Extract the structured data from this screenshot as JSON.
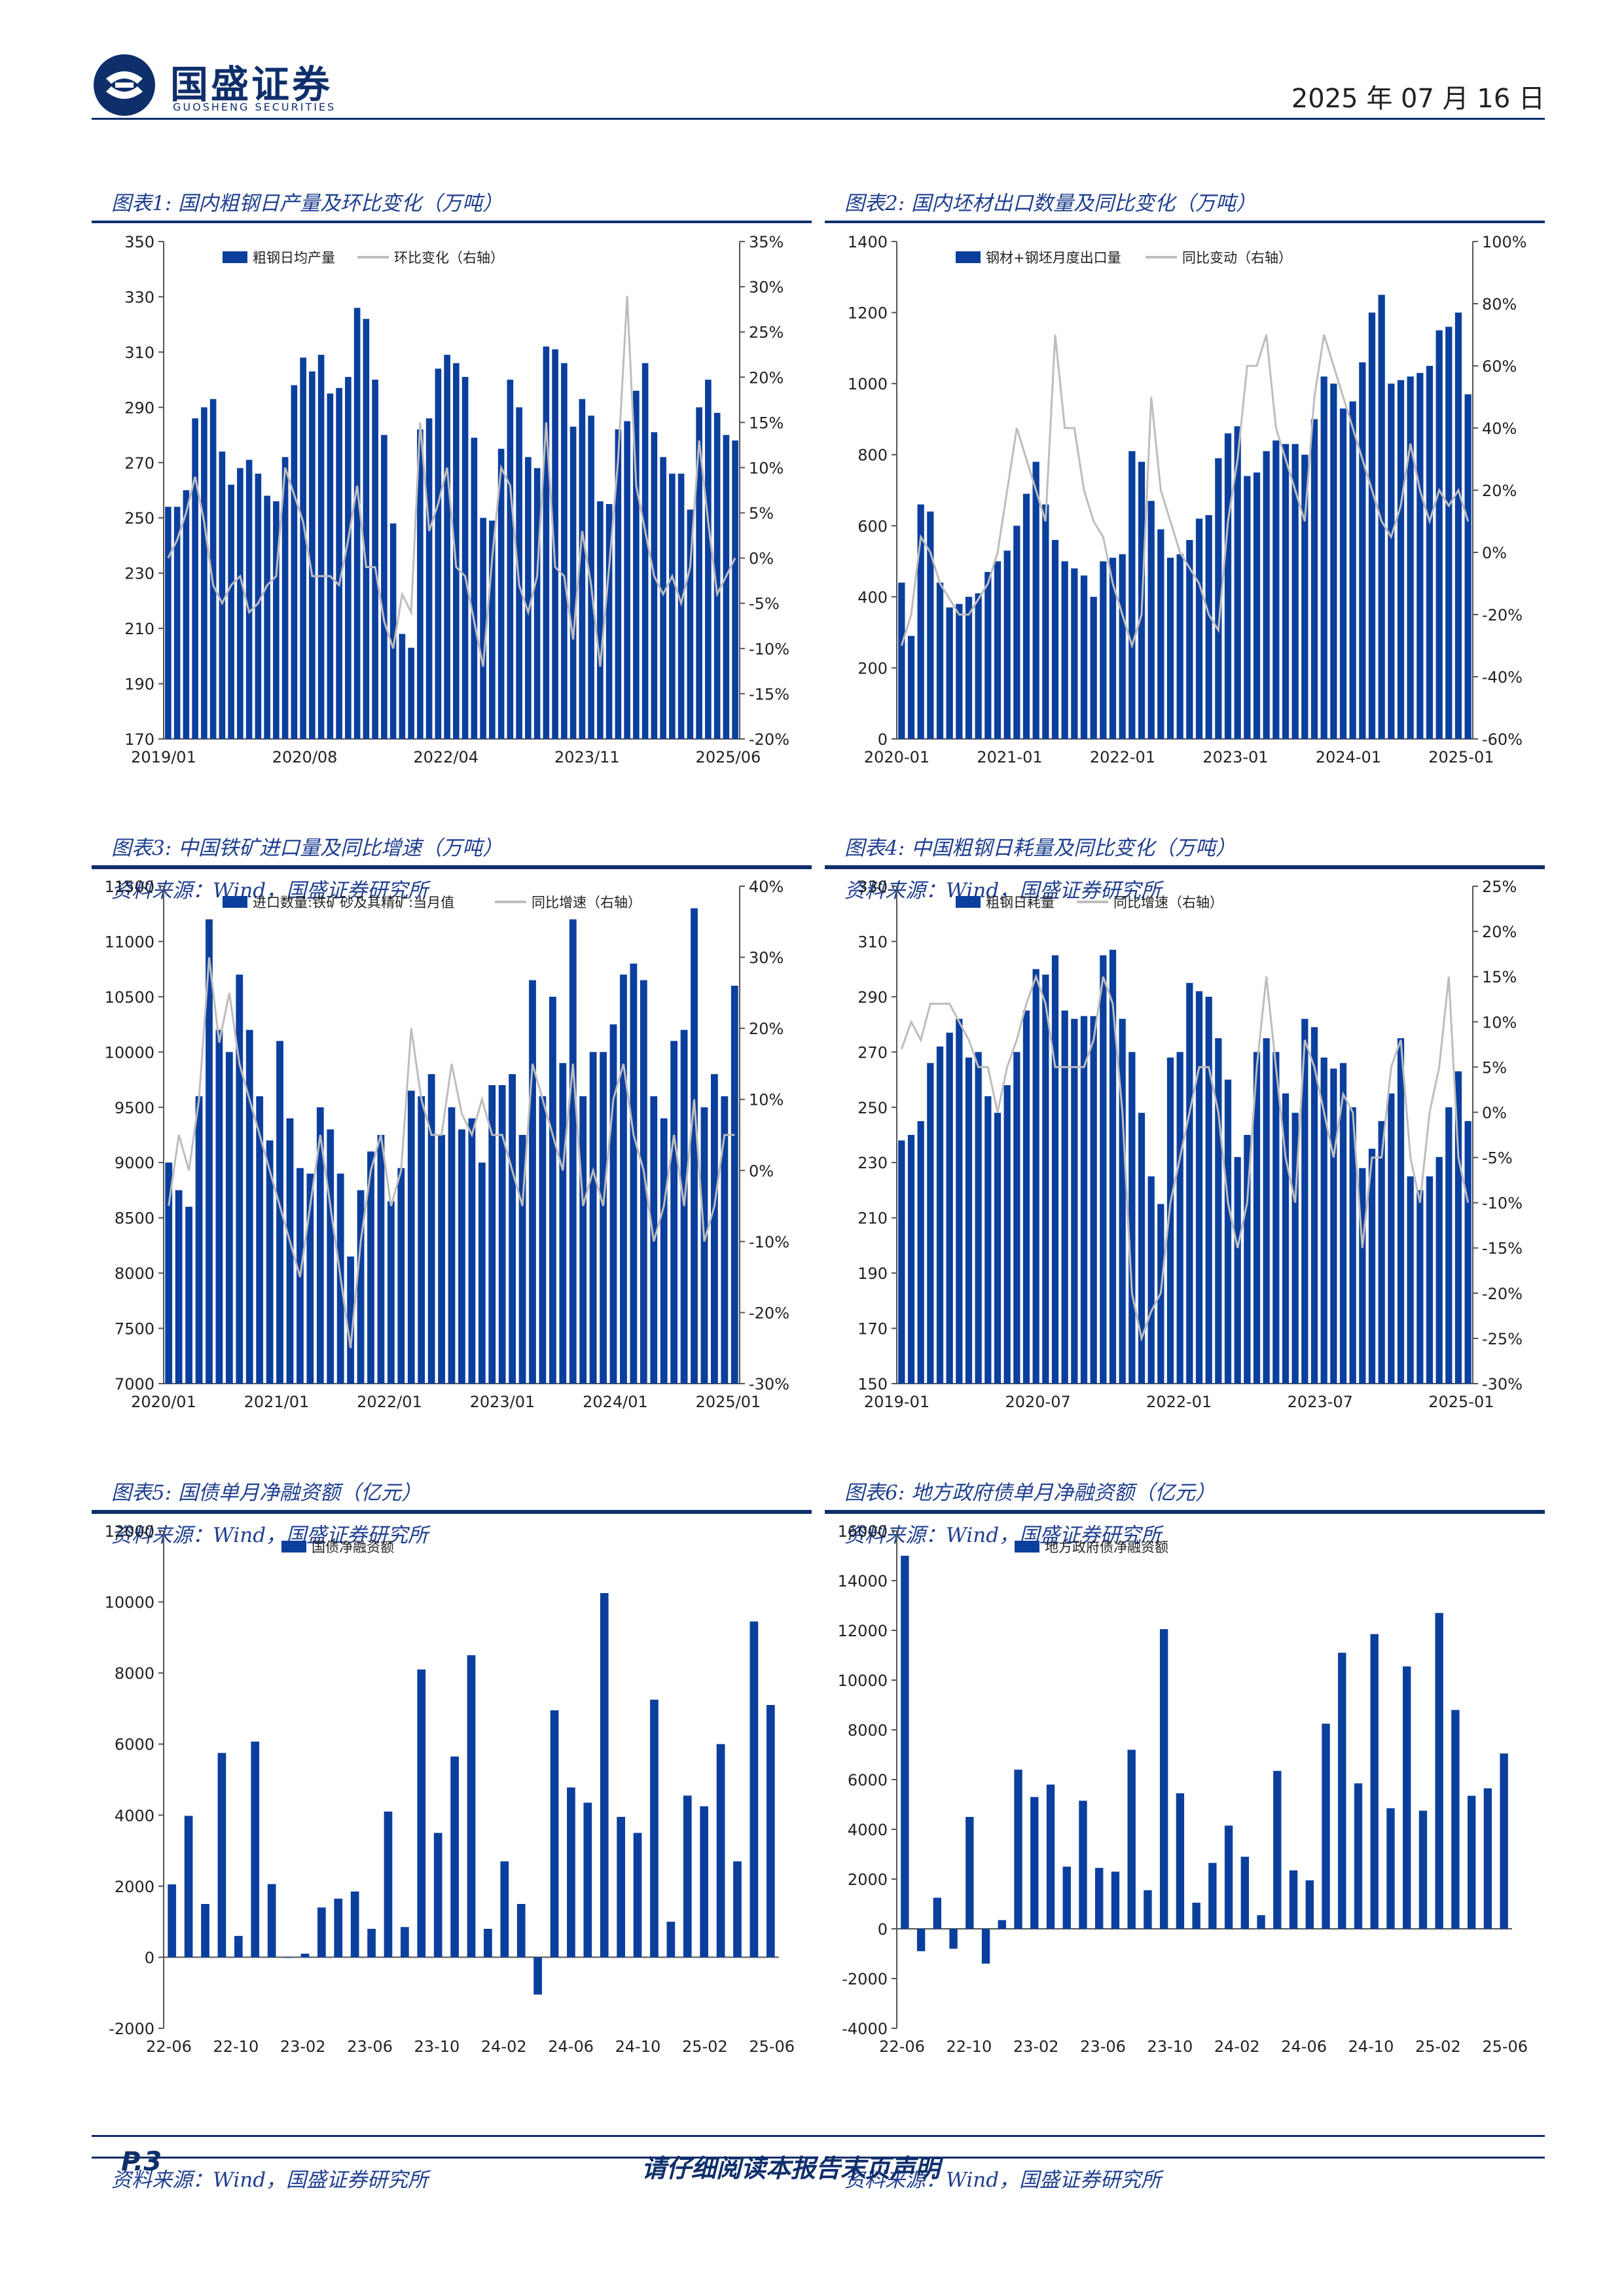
{
  "header": {
    "brand": "国盛证券",
    "brand_en": "GUOSHENG SECURITIES",
    "date": "2025 年 07 月 16 日"
  },
  "footer": {
    "page": "P.3",
    "disclaimer": "请仔细阅读本报告末页声明"
  },
  "colors": {
    "bar": "#0b3f9e",
    "line": "#bdbdbd",
    "accent": "#0f2f6b",
    "title": "#1f3f8f"
  },
  "panels": [
    {
      "title": "图表1:  国内粗钢日产量及环比变化（万吨）",
      "source": "资料来源：Wind，国盛证券研究所"
    },
    {
      "title": "图表2:  国内坯材出口数量及同比变化（万吨）",
      "source": "资料来源：Wind，国盛证券研究所"
    },
    {
      "title": "图表3:  中国铁矿进口量及同比增速（万吨）",
      "source": "资料来源：Wind，国盛证券研究所"
    },
    {
      "title": "图表4:  中国粗钢日耗量及同比变化（万吨）",
      "source": "资料来源：Wind，国盛证券研究所"
    },
    {
      "title": "图表5:  国债单月净融资额（亿元）",
      "source": "资料来源：Wind，国盛证券研究所"
    },
    {
      "title": "图表6:  地方政府债单月净融资额（亿元）",
      "source": "资料来源：Wind，国盛证券研究所"
    }
  ],
  "chart_data": [
    {
      "type": "bar+line",
      "legend": [
        "粗钢日均产量",
        "环比变化（右轴）"
      ],
      "ylim": [
        170,
        350
      ],
      "yticks": [
        170,
        190,
        210,
        230,
        250,
        270,
        290,
        310,
        330,
        350
      ],
      "y2lim": [
        -20,
        35
      ],
      "y2ticks": [
        "-20%",
        "-15%",
        "-10%",
        "-5%",
        "0%",
        "5%",
        "10%",
        "15%",
        "20%",
        "25%",
        "30%",
        "35%"
      ],
      "xticks": [
        "2019/01",
        "2020/08",
        "2022/04",
        "2023/11",
        "2025/06"
      ],
      "bars": [
        254,
        254,
        260,
        286,
        290,
        293,
        274,
        262,
        268,
        271,
        266,
        258,
        256,
        272,
        298,
        308,
        303,
        309,
        295,
        297,
        301,
        326,
        322,
        300,
        280,
        248,
        208,
        203,
        282,
        286,
        304,
        309,
        306,
        301,
        279,
        250,
        249,
        275,
        300,
        290,
        272,
        268,
        312,
        311,
        306,
        283,
        293,
        287,
        256,
        255,
        282,
        285,
        296,
        306,
        281,
        272,
        266,
        266,
        253,
        290,
        300,
        288,
        280,
        278
      ],
      "line": [
        0,
        2,
        5,
        9,
        4,
        -3,
        -5,
        -3,
        -2,
        -6,
        -5,
        -3,
        -2,
        10,
        7,
        4,
        -2,
        -2,
        -2,
        -3,
        2,
        8,
        -1,
        -1,
        -7,
        -10,
        -4,
        -6,
        15,
        3,
        6,
        10,
        -1,
        -2,
        -7,
        -12,
        0,
        10,
        8,
        -3,
        -6,
        -2,
        15,
        -1,
        -2,
        -9,
        3,
        -3,
        -12,
        -1,
        11,
        29,
        8,
        3,
        -2,
        -4,
        -2,
        -5,
        -1,
        13,
        4,
        -4,
        -2,
        0
      ]
    },
    {
      "type": "bar+line",
      "legend": [
        "钢材+钢坯月度出口量",
        "同比变动（右轴）"
      ],
      "ylim": [
        0,
        1400
      ],
      "yticks": [
        0,
        200,
        400,
        600,
        800,
        1000,
        1200,
        1400
      ],
      "y2lim": [
        -60,
        100
      ],
      "y2ticks": [
        "-60%",
        "-40%",
        "-20%",
        "0%",
        "20%",
        "40%",
        "60%",
        "80%",
        "100%"
      ],
      "xticks": [
        "2020-01",
        "2021-01",
        "2022-01",
        "2023-01",
        "2024-01",
        "2025-01"
      ],
      "bars": [
        440,
        290,
        660,
        640,
        440,
        370,
        380,
        400,
        410,
        470,
        500,
        530,
        600,
        690,
        780,
        660,
        560,
        500,
        480,
        460,
        400,
        500,
        510,
        520,
        810,
        780,
        670,
        590,
        510,
        520,
        560,
        620,
        630,
        790,
        860,
        880,
        740,
        750,
        810,
        840,
        830,
        830,
        800,
        900,
        1020,
        1000,
        930,
        950,
        1060,
        1200,
        1250,
        1000,
        1010,
        1020,
        1030,
        1050,
        1150,
        1160,
        1200,
        970
      ],
      "line": [
        -30,
        -20,
        5,
        0,
        -10,
        -15,
        -20,
        -20,
        -15,
        -10,
        0,
        20,
        40,
        30,
        20,
        10,
        70,
        40,
        40,
        20,
        10,
        5,
        -10,
        -20,
        -30,
        -20,
        50,
        20,
        10,
        0,
        -5,
        -10,
        -20,
        -25,
        10,
        30,
        60,
        60,
        70,
        40,
        30,
        20,
        10,
        50,
        70,
        60,
        50,
        40,
        30,
        20,
        10,
        5,
        15,
        35,
        20,
        10,
        20,
        15,
        20,
        10
      ]
    },
    {
      "type": "bar+line",
      "legend": [
        "进口数量:铁矿砂及其精矿:当月值",
        "同比增速（右轴）"
      ],
      "ylim": [
        7000,
        11500
      ],
      "yticks": [
        7000,
        7500,
        8000,
        8500,
        9000,
        9500,
        10000,
        10500,
        11000,
        11500
      ],
      "y2lim": [
        -30,
        40
      ],
      "y2ticks": [
        "-30%",
        "-20%",
        "-10%",
        "0%",
        "10%",
        "20%",
        "30%",
        "40%"
      ],
      "xticks": [
        "2020/01",
        "2021/01",
        "2022/01",
        "2023/01",
        "2024/01",
        "2025/01"
      ],
      "bars": [
        9000,
        8750,
        8600,
        9600,
        11200,
        10200,
        10000,
        10700,
        10200,
        9600,
        9200,
        10100,
        9400,
        8950,
        8900,
        9500,
        9300,
        8900,
        8150,
        8750,
        9100,
        9250,
        8650,
        8950,
        9650,
        9600,
        9800,
        9250,
        9500,
        9300,
        9400,
        9000,
        9700,
        9700,
        9800,
        9250,
        10650,
        9600,
        10500,
        9900,
        11200,
        9600,
        10000,
        10000,
        10250,
        10700,
        10800,
        10650,
        9600,
        9400,
        10100,
        10200,
        11300,
        9500,
        9800,
        9600,
        10600
      ],
      "line": [
        -5,
        5,
        0,
        10,
        30,
        18,
        25,
        15,
        10,
        5,
        0,
        -5,
        -10,
        -15,
        -5,
        5,
        -5,
        -15,
        -25,
        -10,
        0,
        5,
        -5,
        0,
        20,
        10,
        5,
        5,
        15,
        8,
        5,
        10,
        5,
        5,
        0,
        -5,
        15,
        10,
        5,
        0,
        15,
        -5,
        0,
        -5,
        10,
        15,
        5,
        0,
        -10,
        -5,
        5,
        -5,
        10,
        -10,
        -5,
        5,
        5
      ]
    },
    {
      "type": "bar+line",
      "legend": [
        "粗钢日耗量",
        "同比增速（右轴）"
      ],
      "ylim": [
        150,
        330
      ],
      "yticks": [
        150,
        170,
        190,
        210,
        230,
        250,
        270,
        290,
        310,
        330
      ],
      "y2lim": [
        -30,
        25
      ],
      "y2ticks": [
        "-30%",
        "-25%",
        "-20%",
        "-15%",
        "-10%",
        "-5%",
        "0%",
        "5%",
        "10%",
        "15%",
        "20%",
        "25%"
      ],
      "xticks": [
        "2019-01",
        "2020-07",
        "2022-01",
        "2023-07",
        "2025-01"
      ],
      "bars": [
        238,
        240,
        245,
        266,
        272,
        277,
        282,
        268,
        270,
        254,
        248,
        258,
        270,
        285,
        300,
        298,
        305,
        285,
        282,
        283,
        283,
        305,
        307,
        282,
        270,
        248,
        225,
        215,
        268,
        270,
        295,
        292,
        290,
        275,
        260,
        232,
        240,
        270,
        275,
        270,
        255,
        248,
        282,
        279,
        268,
        264,
        266,
        250,
        228,
        235,
        245,
        255,
        275,
        225,
        220,
        225,
        232,
        250,
        263,
        245
      ],
      "line": [
        7,
        10,
        8,
        12,
        12,
        12,
        10,
        8,
        5,
        5,
        0,
        5,
        8,
        12,
        15,
        12,
        5,
        5,
        5,
        5,
        8,
        15,
        12,
        0,
        -20,
        -25,
        -22,
        -20,
        -10,
        -5,
        0,
        5,
        5,
        0,
        -10,
        -15,
        -10,
        5,
        15,
        5,
        -5,
        -10,
        8,
        5,
        0,
        -5,
        2,
        0,
        -15,
        -5,
        -5,
        5,
        8,
        -5,
        -10,
        0,
        5,
        15,
        -5,
        -10
      ]
    },
    {
      "type": "bar",
      "legend": [
        "国债净融资额"
      ],
      "ylim": [
        -2000,
        12000
      ],
      "yticks": [
        -2000,
        0,
        2000,
        4000,
        6000,
        8000,
        10000,
        12000
      ],
      "xticks": [
        "22-06",
        "22-10",
        "23-02",
        "23-06",
        "23-10",
        "24-02",
        "24-06",
        "24-10",
        "25-02",
        "25-06"
      ],
      "bars": [
        2050,
        3980,
        1500,
        5750,
        600,
        6070,
        2060,
        0,
        100,
        1400,
        1650,
        1850,
        800,
        4100,
        850,
        8100,
        3500,
        5650,
        8500,
        800,
        2700,
        1500,
        -1050,
        6950,
        4780,
        4350,
        10250,
        3950,
        3500,
        7250,
        1000,
        4550,
        4250,
        6000,
        2700,
        9450,
        7100
      ]
    },
    {
      "type": "bar",
      "legend": [
        "地方政府债净融资额"
      ],
      "ylim": [
        -4000,
        16000
      ],
      "yticks": [
        -4000,
        -2000,
        0,
        2000,
        4000,
        6000,
        8000,
        10000,
        12000,
        14000,
        16000
      ],
      "xticks": [
        "22-06",
        "22-10",
        "23-02",
        "23-06",
        "23-10",
        "24-02",
        "24-06",
        "24-10",
        "25-02",
        "25-06"
      ],
      "bars": [
        15000,
        -900,
        1250,
        -800,
        4500,
        -1400,
        350,
        6400,
        5300,
        5800,
        2500,
        5150,
        2450,
        2300,
        7200,
        1550,
        12050,
        5450,
        1050,
        2650,
        4150,
        2900,
        550,
        6350,
        2350,
        1950,
        8250,
        11100,
        5850,
        11850,
        4850,
        10550,
        4750,
        12700,
        8800,
        5350,
        5650,
        7050
      ]
    }
  ]
}
